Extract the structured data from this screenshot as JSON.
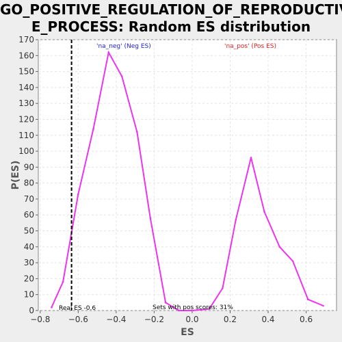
{
  "chart_data": {
    "type": "line",
    "title": "GO_POSITIVE_REGULATION_OF_REPRODUCTIVE_PROCESS: Random ES distribution",
    "title_lines": [
      "GO_POSITIVE_REGULATION_OF_REPRODUCTIV",
      "E_PROCESS: Random ES distribution"
    ],
    "xlabel": "ES",
    "ylabel": "P(ES)",
    "xlim": [
      -0.81,
      0.76
    ],
    "ylim": [
      0,
      170
    ],
    "xticks": [
      -0.8,
      -0.6,
      -0.4,
      -0.2,
      0.0,
      0.2,
      0.4,
      0.6
    ],
    "xtick_labels": [
      "−0.8",
      "−0.6",
      "−0.4",
      "−0.2",
      "0.0",
      "0.2",
      "0.4",
      "0.6"
    ],
    "yticks": [
      0,
      10,
      20,
      30,
      40,
      50,
      60,
      70,
      80,
      90,
      100,
      110,
      120,
      130,
      140,
      150,
      160,
      170
    ],
    "grid": true,
    "series": [
      {
        "color": "#ee33ee",
        "x": [
          -0.74,
          -0.68,
          -0.6,
          -0.52,
          -0.44,
          -0.37,
          -0.29,
          -0.22,
          -0.14,
          -0.07,
          0.0,
          0.09,
          0.16,
          0.23,
          0.31,
          0.38,
          0.46,
          0.53,
          0.61,
          0.69
        ],
        "y": [
          2,
          18,
          73,
          114,
          162,
          147,
          112,
          58,
          5,
          0,
          0,
          1,
          14,
          57,
          96,
          62,
          40,
          31,
          7,
          3
        ]
      }
    ],
    "real_es": -0.635,
    "annotations": {
      "neg_label": "'na_neg' (Neg ES)",
      "neg_color": "#2222dd",
      "pos_label": "'na_pos' (Pos ES)",
      "pos_color": "#dd2222",
      "real_es_label": "Real ES -0.6",
      "sets_label": "Sets with pos scores: 31%"
    }
  }
}
